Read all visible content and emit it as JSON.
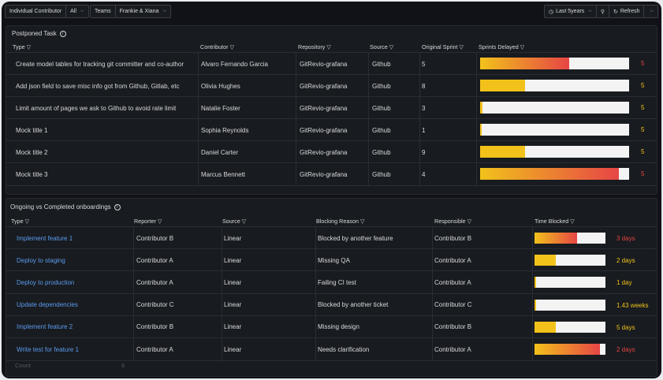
{
  "toolbar": {
    "contributor_label": "Individual Contributor",
    "contributor_value": "All",
    "teams_label": "Teams",
    "teams_value": "Frankie & Xiana",
    "time_range": "Last 5years",
    "refresh_label": "Refresh"
  },
  "postponed": {
    "title": "Postponed Task",
    "columns": [
      "Type",
      "Contributor",
      "Repository",
      "Source",
      "Original Sprint",
      "Sprints Delayed"
    ],
    "rows": [
      {
        "type": "Create model tables for tracking git committer and co-author",
        "contributor": "Alvaro Fernando Garcia",
        "repository": "GitRevio-grafana",
        "source": "Github",
        "sprint": "5",
        "delayed": "5",
        "fraction": 0.6,
        "color": "#e64545"
      },
      {
        "type": "Add json field to save misc info got from Github, Gitlab, etc",
        "contributor": "Olivia Hughes",
        "repository": "GitRevio-grafana",
        "source": "Github",
        "sprint": "8",
        "delayed": "5",
        "fraction": 0.3,
        "color": "#f2c21b"
      },
      {
        "type": "Limit amount of pages we ask to Github to avoid rate limit",
        "contributor": "Natalie Foster",
        "repository": "GitRevio-grafana",
        "source": "Github",
        "sprint": "3",
        "delayed": "5",
        "fraction": 0.015,
        "color": "#f2c21b"
      },
      {
        "type": "Mock title 1",
        "contributor": "Sophia Reynolds",
        "repository": "GitRevio-grafana",
        "source": "Github",
        "sprint": "1",
        "delayed": "5",
        "fraction": 0.01,
        "color": "#f2c21b"
      },
      {
        "type": "Mock title 2",
        "contributor": "Daniel Carter",
        "repository": "GitRevio-grafana",
        "source": "Github",
        "sprint": "9",
        "delayed": "5",
        "fraction": 0.3,
        "color": "#f2c21b"
      },
      {
        "type": "Mock title 3",
        "contributor": "Marcus Bennett",
        "repository": "GitRevio-grafana",
        "source": "Github",
        "sprint": "4",
        "delayed": "5",
        "fraction": 0.93,
        "color": "#e64545"
      }
    ]
  },
  "onboardings": {
    "title": "Ongoing vs Completed onboardings",
    "columns": [
      "Type",
      "Reporter",
      "Source",
      "Blocking Reason",
      "Responsible",
      "Time Blocked"
    ],
    "rows": [
      {
        "type": "Implement feature 1",
        "reporter": "Contributor B",
        "source": "Linear",
        "reason": "Blocked by another feature",
        "responsible": "Contributor B",
        "time": "3 days",
        "fraction": 0.6,
        "color": "#e64545"
      },
      {
        "type": "Deploy to staging",
        "reporter": "Contributor A",
        "source": "Linear",
        "reason": "Missing QA",
        "responsible": "Contributor A",
        "time": "2 days",
        "fraction": 0.3,
        "color": "#f2c21b"
      },
      {
        "type": "Deploy to production",
        "reporter": "Contributor A",
        "source": "Linear",
        "reason": "Failing CI test",
        "responsible": "Contributor A",
        "time": "1 day",
        "fraction": 0.02,
        "color": "#f2c21b"
      },
      {
        "type": "Update dependencies",
        "reporter": "Contributor C",
        "source": "Linear",
        "reason": "Blocked by another ticket",
        "responsible": "Contributor C",
        "time": "1.43 weeks",
        "fraction": 0.02,
        "color": "#f2c21b"
      },
      {
        "type": "Implement feature 2",
        "reporter": "Contributor B",
        "source": "Linear",
        "reason": "Missing design",
        "responsible": "Contributor B",
        "time": "5 days",
        "fraction": 0.3,
        "color": "#f2c21b"
      },
      {
        "type": "Write test for feature 1",
        "reporter": "Contributor A",
        "source": "Linear",
        "reason": "Needs clarification",
        "responsible": "Contributor A",
        "time": "2 days",
        "fraction": 0.92,
        "color": "#e64545"
      }
    ],
    "footer_label": "Count",
    "footer_value": "6"
  }
}
